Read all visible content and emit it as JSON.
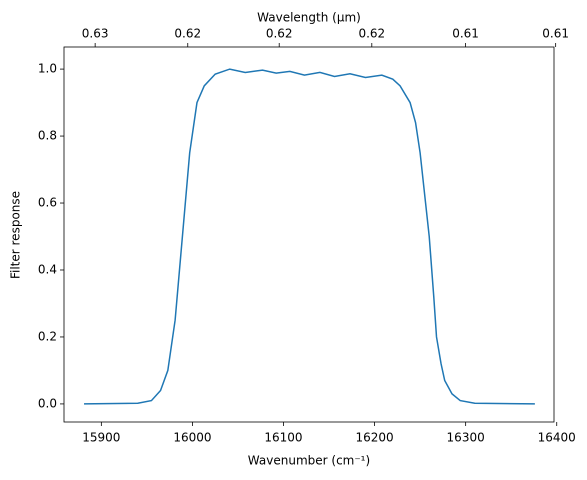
{
  "chart_data": {
    "type": "line",
    "xlabel": "Wavenumber (cm⁻¹)",
    "ylabel": "Filter response",
    "x2label": "Wavelength (μm)",
    "x": [
      15881,
      15940,
      15955,
      15965,
      15973,
      15981,
      15989,
      15997,
      16005,
      16013,
      16025,
      16041,
      16058,
      16077,
      16092,
      16107,
      16123,
      16140,
      16156,
      16173,
      16190,
      16208,
      16220,
      16228,
      16239,
      16245,
      16250,
      16256,
      16260,
      16265,
      16268,
      16273,
      16277,
      16285,
      16294,
      16310,
      16376
    ],
    "series": [
      {
        "color": "#1f77b4",
        "values": [
          0,
          0.002,
          0.01,
          0.04,
          0.1,
          0.25,
          0.5,
          0.75,
          0.9,
          0.95,
          0.985,
          1.0,
          0.99,
          0.997,
          0.988,
          0.993,
          0.982,
          0.99,
          0.978,
          0.986,
          0.975,
          0.982,
          0.97,
          0.95,
          0.9,
          0.84,
          0.75,
          0.6,
          0.5,
          0.32,
          0.2,
          0.12,
          0.07,
          0.03,
          0.01,
          0.002,
          0
        ]
      }
    ],
    "xlim": [
      15859,
      16397
    ],
    "xticks": [
      15900,
      16000,
      16100,
      16200,
      16300,
      16400
    ],
    "ylim": [
      -0.054,
      1.066
    ],
    "yticks": [
      {
        "value": 0,
        "label": "0.0"
      },
      {
        "value": 0.2,
        "label": "0.2"
      },
      {
        "value": 0.4,
        "label": "0.4"
      },
      {
        "value": 0.6,
        "label": "0.6"
      },
      {
        "value": 0.8,
        "label": "0.8"
      },
      {
        "value": 1.0,
        "label": "1.0"
      }
    ],
    "x2ticks": [
      {
        "value": 0.6292,
        "label": "0.63"
      },
      {
        "value": 0.6252,
        "label": "0.62"
      },
      {
        "value": 0.6213,
        "label": "0.62"
      },
      {
        "value": 0.6174,
        "label": "0.62"
      },
      {
        "value": 0.6135,
        "label": "0.61"
      },
      {
        "value": 0.6098,
        "label": "0.61"
      }
    ]
  }
}
